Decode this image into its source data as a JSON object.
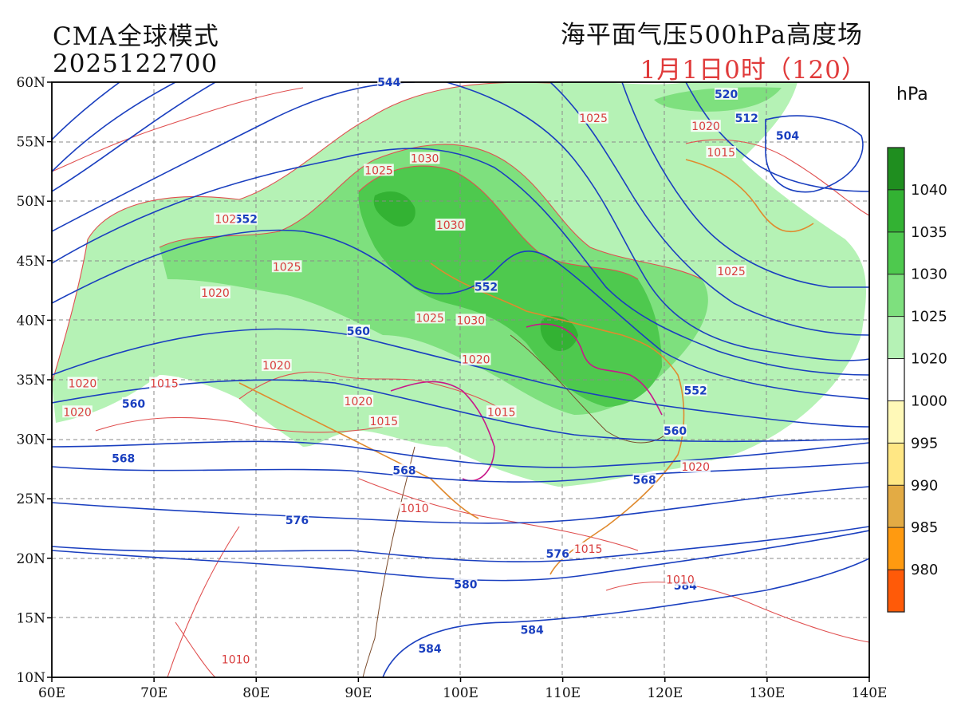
{
  "header": {
    "model_name": "CMA全球模式",
    "run_time": "2025122700",
    "field_title": "海平面气压500hPa高度场",
    "valid_time": "1月1日0时（120）"
  },
  "map": {
    "lat_labels": [
      "60N",
      "55N",
      "50N",
      "45N",
      "40N",
      "35N",
      "30N",
      "25N",
      "20N",
      "15N",
      "10N"
    ],
    "lon_labels": [
      "60E",
      "70E",
      "80E",
      "90E",
      "100E",
      "110E",
      "120E",
      "130E",
      "140E"
    ],
    "extent": {
      "lon_min": 60,
      "lon_max": 140,
      "lat_min": 10,
      "lat_max": 60
    },
    "height_contour_color": "#1a3fbf",
    "pressure_contour_color": "#e05050",
    "coastline_color": "#e08a2e",
    "height_labels": [
      {
        "text": "544",
        "lon": 93,
        "lat": 60
      },
      {
        "text": "520",
        "lon": 126,
        "lat": 59
      },
      {
        "text": "512",
        "lon": 128,
        "lat": 57
      },
      {
        "text": "504",
        "lon": 132,
        "lat": 55.5
      },
      {
        "text": "552",
        "lon": 79,
        "lat": 48.5
      },
      {
        "text": "552",
        "lon": 102.5,
        "lat": 42.8
      },
      {
        "text": "560",
        "lon": 90,
        "lat": 39.1
      },
      {
        "text": "552",
        "lon": 123,
        "lat": 34.1
      },
      {
        "text": "560",
        "lon": 68,
        "lat": 33
      },
      {
        "text": "560",
        "lon": 121,
        "lat": 30.7
      },
      {
        "text": "568",
        "lon": 67,
        "lat": 28.4
      },
      {
        "text": "568",
        "lon": 94.5,
        "lat": 27.4
      },
      {
        "text": "568",
        "lon": 118,
        "lat": 26.6
      },
      {
        "text": "576",
        "lon": 84,
        "lat": 23.2
      },
      {
        "text": "576",
        "lon": 109.5,
        "lat": 20.4
      },
      {
        "text": "580",
        "lon": 100.5,
        "lat": 17.8
      },
      {
        "text": "584",
        "lon": 122,
        "lat": 17.7
      },
      {
        "text": "584",
        "lon": 107,
        "lat": 14.0
      },
      {
        "text": "584",
        "lon": 97,
        "lat": 12.4
      }
    ],
    "pressure_labels": [
      {
        "text": "1025",
        "lon": 113,
        "lat": 57.0
      },
      {
        "text": "1020",
        "lon": 124,
        "lat": 56.3
      },
      {
        "text": "1015",
        "lon": 125.5,
        "lat": 54.1
      },
      {
        "text": "1030",
        "lon": 96.5,
        "lat": 53.6
      },
      {
        "text": "1025",
        "lon": 92,
        "lat": 52.6
      },
      {
        "text": "1030",
        "lon": 99,
        "lat": 48.0
      },
      {
        "text": "102",
        "lon": 77,
        "lat": 48.5
      },
      {
        "text": "1025",
        "lon": 83,
        "lat": 44.5
      },
      {
        "text": "1025",
        "lon": 126.5,
        "lat": 44.1
      },
      {
        "text": "1020",
        "lon": 76,
        "lat": 42.3
      },
      {
        "text": "1025",
        "lon": 97,
        "lat": 40.2
      },
      {
        "text": "1030",
        "lon": 101,
        "lat": 40.0
      },
      {
        "text": "1020",
        "lon": 82,
        "lat": 36.2
      },
      {
        "text": "1020",
        "lon": 101.5,
        "lat": 36.7
      },
      {
        "text": "1020",
        "lon": 63,
        "lat": 34.7
      },
      {
        "text": "1015",
        "lon": 71,
        "lat": 34.7
      },
      {
        "text": "1020",
        "lon": 62.5,
        "lat": 32.3
      },
      {
        "text": "1020",
        "lon": 90,
        "lat": 33.2
      },
      {
        "text": "1015",
        "lon": 92.5,
        "lat": 31.5
      },
      {
        "text": "1015",
        "lon": 104,
        "lat": 32.3
      },
      {
        "text": "1020",
        "lon": 123,
        "lat": 27.7
      },
      {
        "text": "1010",
        "lon": 95.5,
        "lat": 24.2
      },
      {
        "text": "1015",
        "lon": 112.5,
        "lat": 20.8
      },
      {
        "text": "1010",
        "lon": 121.5,
        "lat": 18.2
      },
      {
        "text": "1010",
        "lon": 78,
        "lat": 11.5
      }
    ]
  },
  "colorbar": {
    "unit": "hPa",
    "labels": [
      "1040",
      "1035",
      "1030",
      "1025",
      "1020",
      "1000",
      "995",
      "990",
      "985",
      "980"
    ],
    "colors": [
      "#1f8e1f",
      "#33b233",
      "#4ec94e",
      "#7ee07e",
      "#b5f2b5",
      "#ffffff",
      "#fff9b8",
      "#ffe784",
      "#e3ab44",
      "#ff9a10",
      "#ff5a08"
    ]
  }
}
